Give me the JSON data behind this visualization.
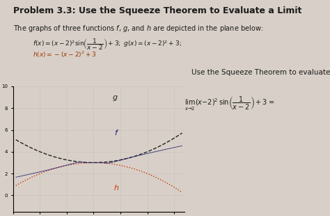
{
  "title": "Problem 3.3: Use the Squeeze Theorem to Evaluate a Limit",
  "subtitle": "The graphs of three functions $f$, $g$, and $h$ are depicted in the plane below:",
  "formula_line": "$f(x) = (x-2)^2 \\sin\\left(\\dfrac{1}{x-2}\\right) + 3$;  $g(x) = (x-2)^2 + 3$;  $h(x) = -(x-2)^2 + 3$",
  "squeeze_label": "Use the Squeeze Theorem to evaluate:",
  "limit_expr": "$\\lim_{x \\to 2}(x-2)^2 \\sin\\left(\\dfrac{1}{x-2}\\right) + 3 =$",
  "bg_color": "#d8d0c8",
  "plot_bg": "#d8d0c8",
  "text_color": "#1a1a1a",
  "xlim": [
    0.5,
    3.7
  ],
  "ylim": [
    -1.5,
    10
  ],
  "x_center": 2.0,
  "amplitude": 1.0
}
